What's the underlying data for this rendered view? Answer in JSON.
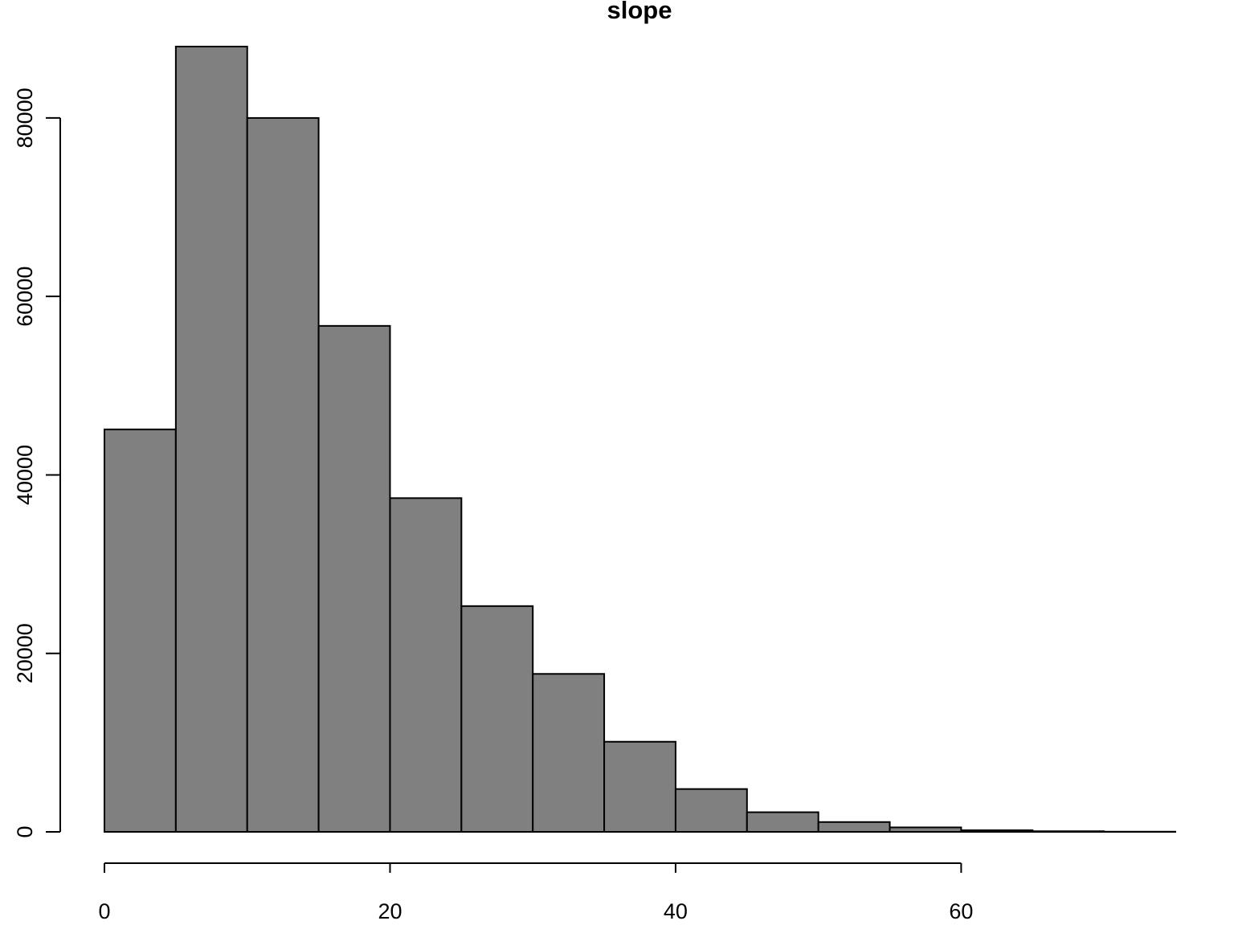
{
  "chart_data": {
    "type": "bar",
    "subtype": "histogram",
    "title": "slope",
    "xlabel": "",
    "ylabel": "",
    "bins": [
      {
        "start": 0,
        "end": 5,
        "count": 45100
      },
      {
        "start": 5,
        "end": 10,
        "count": 88000
      },
      {
        "start": 10,
        "end": 15,
        "count": 80000
      },
      {
        "start": 15,
        "end": 20,
        "count": 56700
      },
      {
        "start": 20,
        "end": 25,
        "count": 37400
      },
      {
        "start": 25,
        "end": 30,
        "count": 25300
      },
      {
        "start": 30,
        "end": 35,
        "count": 17700
      },
      {
        "start": 35,
        "end": 40,
        "count": 10100
      },
      {
        "start": 40,
        "end": 45,
        "count": 4800
      },
      {
        "start": 45,
        "end": 50,
        "count": 2200
      },
      {
        "start": 50,
        "end": 55,
        "count": 1100
      },
      {
        "start": 55,
        "end": 60,
        "count": 500
      },
      {
        "start": 60,
        "end": 65,
        "count": 180
      },
      {
        "start": 65,
        "end": 70,
        "count": 70
      },
      {
        "start": 70,
        "end": 75,
        "count": 20
      }
    ],
    "x_ticks": [
      0,
      20,
      40,
      60
    ],
    "x_tick_labels": [
      "0",
      "20",
      "40",
      "60"
    ],
    "x_axis_range": [
      0,
      60
    ],
    "xlim": [
      0,
      75
    ],
    "y_ticks": [
      0,
      20000,
      40000,
      60000,
      80000
    ],
    "y_tick_labels": [
      "0",
      "20000",
      "40000",
      "60000",
      "80000"
    ],
    "ylim": [
      0,
      88000
    ],
    "grid": false,
    "legend": "none",
    "bar_color": "#808080",
    "edge_color": "#000000"
  }
}
